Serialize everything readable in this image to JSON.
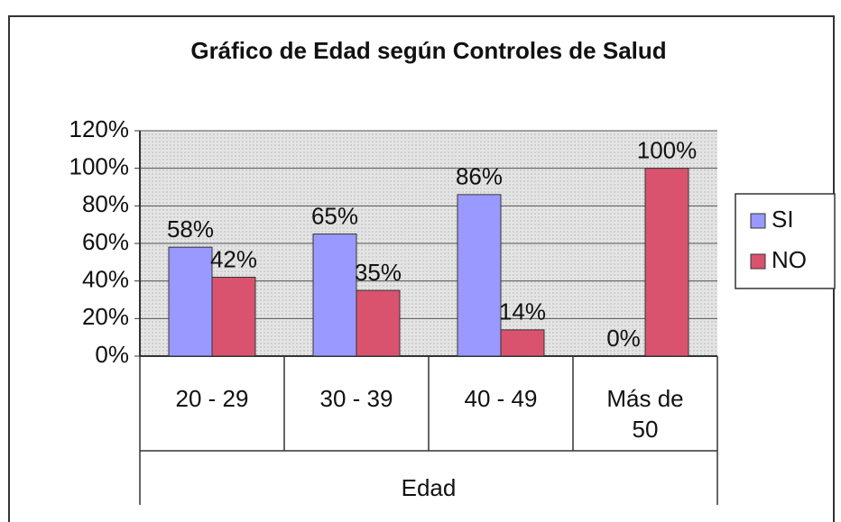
{
  "chart_data": {
    "type": "bar",
    "title": "Gráfico de Edad según Controles de Salud",
    "x_label": "Edad",
    "categories": [
      "20 - 29",
      "30 - 39",
      "40 - 49",
      "Más de 50"
    ],
    "series": [
      {
        "name": "SI",
        "color": "#9999ff",
        "values": [
          58,
          65,
          86,
          0
        ],
        "value_labels": [
          "58%",
          "65%",
          "86%",
          "0%"
        ]
      },
      {
        "name": "NO",
        "color": "#d9536f",
        "values": [
          42,
          35,
          14,
          100
        ],
        "value_labels": [
          "42%",
          "35%",
          "14%",
          "100%"
        ]
      }
    ],
    "ylim": [
      0,
      120
    ],
    "yticks": [
      {
        "value": 0,
        "label": "0%"
      },
      {
        "value": 20,
        "label": "20%"
      },
      {
        "value": 40,
        "label": "40%"
      },
      {
        "value": 60,
        "label": "60%"
      },
      {
        "value": 80,
        "label": "80%"
      },
      {
        "value": 100,
        "label": "100%"
      },
      {
        "value": 120,
        "label": "120%"
      }
    ],
    "grid": true,
    "legend": "right"
  }
}
